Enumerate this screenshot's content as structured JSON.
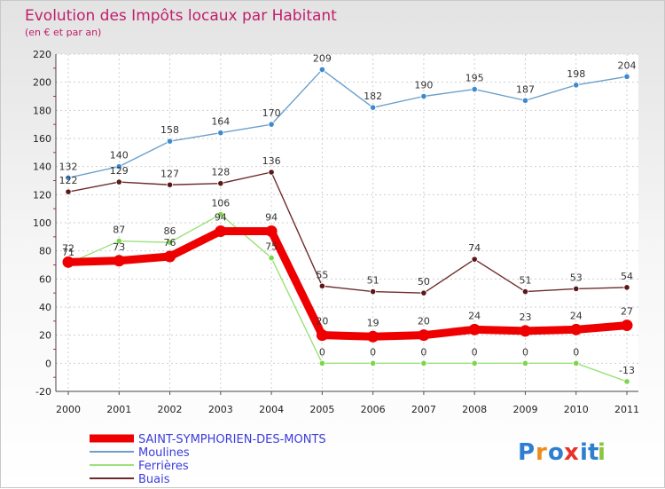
{
  "chart_data": {
    "type": "line",
    "title": "Evolution des Impôts locaux par Habitant",
    "subtitle": "(en € et par an)",
    "xlabel": "",
    "ylabel": "",
    "ylim": [
      -20,
      220
    ],
    "yticks": [
      "-20",
      "0",
      "20",
      "40",
      "60",
      "80",
      "100",
      "120",
      "140",
      "160",
      "180",
      "200",
      "220"
    ],
    "categories": [
      "2000",
      "2001",
      "2002",
      "2003",
      "2004",
      "2005",
      "2006",
      "2007",
      "2008",
      "2009",
      "2010",
      "2011"
    ],
    "grid": true,
    "legend_position": "bottom-left",
    "series": [
      {
        "name": "Moulines",
        "color": "#6b9fca",
        "marker_color": "#3d8ad0",
        "values": [
          132,
          140,
          158,
          164,
          170,
          209,
          182,
          190,
          195,
          187,
          198,
          204
        ],
        "labels": [
          "132",
          "140",
          "158",
          "164",
          "170",
          "209",
          "182",
          "190",
          "195",
          "187",
          "198",
          "204"
        ]
      },
      {
        "name": "Buais",
        "color": "#6e2a2a",
        "marker_color": "#5a1818",
        "values": [
          122,
          129,
          127,
          128,
          136,
          55,
          51,
          50,
          74,
          51,
          53,
          54
        ],
        "labels": [
          "122",
          "129",
          "127",
          "128",
          "136",
          "55",
          "51",
          "50",
          "74",
          "51",
          "53",
          "54"
        ]
      },
      {
        "name": "Ferrières",
        "color": "#9be27a",
        "marker_color": "#7cd64a",
        "values": [
          71,
          87,
          86,
          106,
          75,
          0,
          0,
          0,
          0,
          0,
          0,
          -13
        ],
        "labels": [
          "71",
          "87",
          "86",
          "106",
          "75",
          "0",
          "0",
          "0",
          "0",
          "0",
          "0",
          "-13"
        ]
      },
      {
        "name": "SAINT-SYMPHORIEN-DES-MONTS",
        "color": "#ee0000",
        "marker_color": "#ee0000",
        "values": [
          72,
          73,
          76,
          94,
          94,
          20,
          19,
          20,
          24,
          23,
          24,
          27
        ],
        "labels": [
          "72",
          "73",
          "76",
          "94",
          "94",
          "20",
          "19",
          "20",
          "24",
          "23",
          "24",
          "27"
        ]
      }
    ],
    "legend": [
      "SAINT-SYMPHORIEN-DES-MONTS",
      "Moulines",
      "Ferrières",
      "Buais"
    ]
  },
  "branding": {
    "logo_letters": [
      "P",
      "r",
      "o",
      "x",
      "i",
      "t",
      "i"
    ],
    "logo_colors": [
      "#2e7fd1",
      "#f08a1c",
      "#2e7fd1",
      "#e6332a",
      "#2e7fd1",
      "#2e7fd1",
      "#8cc43c"
    ]
  }
}
